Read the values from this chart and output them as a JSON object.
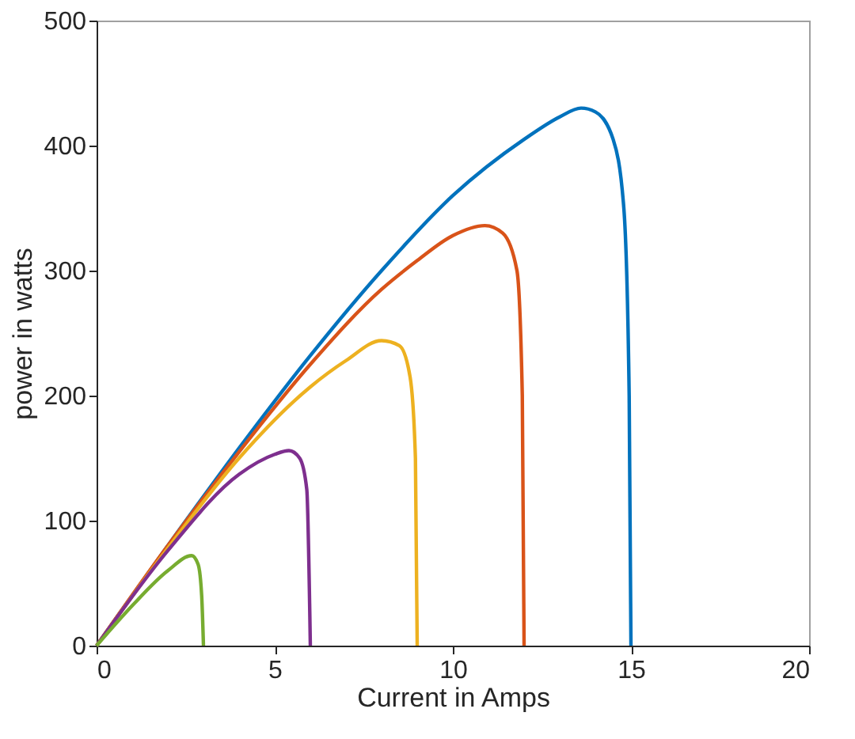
{
  "chart_data": {
    "type": "line",
    "xlabel": "Current in Amps",
    "ylabel": "power in watts",
    "xlim": [
      0,
      20
    ],
    "xticks": [
      0,
      5,
      10,
      15,
      20
    ],
    "ylim": [
      0,
      500
    ],
    "yticks": [
      0,
      100,
      200,
      300,
      400,
      500
    ],
    "grid": false,
    "legend": false,
    "marker": "none",
    "line_style": "solid",
    "series": [
      {
        "color": "#0072bd",
        "x": [
          0,
          2,
          4,
          6,
          8,
          10,
          12,
          13,
          13.6,
          14,
          14.5,
          14.8,
          14.95,
          15
        ],
        "values": [
          0,
          80,
          158,
          232,
          300,
          360,
          405,
          423,
          430,
          427,
          405,
          350,
          200,
          0
        ]
      },
      {
        "color": "#d95319",
        "x": [
          0,
          2,
          4,
          6,
          8,
          9,
          10,
          10.9,
          11.4,
          11.8,
          11.95,
          12
        ],
        "values": [
          0,
          80,
          155,
          225,
          285,
          308,
          328,
          336,
          330,
          300,
          200,
          0
        ]
      },
      {
        "color": "#edb120",
        "x": [
          0,
          2,
          4,
          6,
          7,
          8,
          8.5,
          8.8,
          8.95,
          9
        ],
        "values": [
          0,
          78,
          150,
          207,
          228,
          244,
          240,
          215,
          150,
          0
        ]
      },
      {
        "color": "#7e2f8e",
        "x": [
          0,
          2,
          4,
          5,
          5.4,
          5.7,
          5.9,
          6
        ],
        "values": [
          0,
          76,
          137,
          153,
          156,
          150,
          125,
          0
        ]
      },
      {
        "color": "#77ac30",
        "x": [
          0,
          1,
          2,
          2.67,
          2.85,
          2.95,
          3
        ],
        "values": [
          0,
          32,
          60,
          72,
          65,
          40,
          0
        ]
      }
    ]
  }
}
